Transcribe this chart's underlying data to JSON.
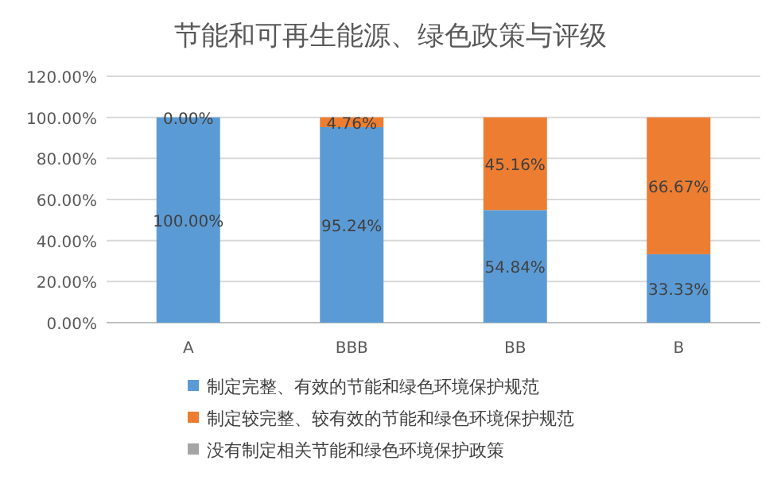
{
  "chart_data": {
    "type": "bar",
    "stacked": true,
    "title": "节能和可再生能源、绿色政策与评级",
    "categories": [
      "A",
      "BBB",
      "BB",
      "B"
    ],
    "series": [
      {
        "name": "制定完整、有效的节能和绿色环境保护规范",
        "color": "#5b9bd5",
        "values": [
          100,
          95.24,
          54.84,
          33.33
        ],
        "value_labels": [
          "100.00%",
          "95.24%",
          "54.84%",
          "33.33%"
        ]
      },
      {
        "name": "制定较完整、较有效的节能和绿色环境保护规范",
        "color": "#ed7d31",
        "values": [
          0,
          4.76,
          45.16,
          66.67
        ],
        "value_labels": [
          "0.00%",
          "4.76%",
          "45.16%",
          "66.67%"
        ]
      },
      {
        "name": "没有制定相关节能和绿色环境保护政策",
        "color": "#a5a5a5",
        "values": [
          0,
          0,
          0,
          0
        ]
      }
    ],
    "ylim": [
      0,
      120
    ],
    "yticks": [
      {
        "value": 0,
        "label": "0.00%"
      },
      {
        "value": 20,
        "label": "20.00%"
      },
      {
        "value": 40,
        "label": "40.00%"
      },
      {
        "value": 60,
        "label": "60.00%"
      },
      {
        "value": 80,
        "label": "80.00%"
      },
      {
        "value": 100,
        "label": "100.00%"
      },
      {
        "value": 120,
        "label": "120.00%"
      }
    ],
    "grid": "y",
    "legend": "bottom"
  }
}
